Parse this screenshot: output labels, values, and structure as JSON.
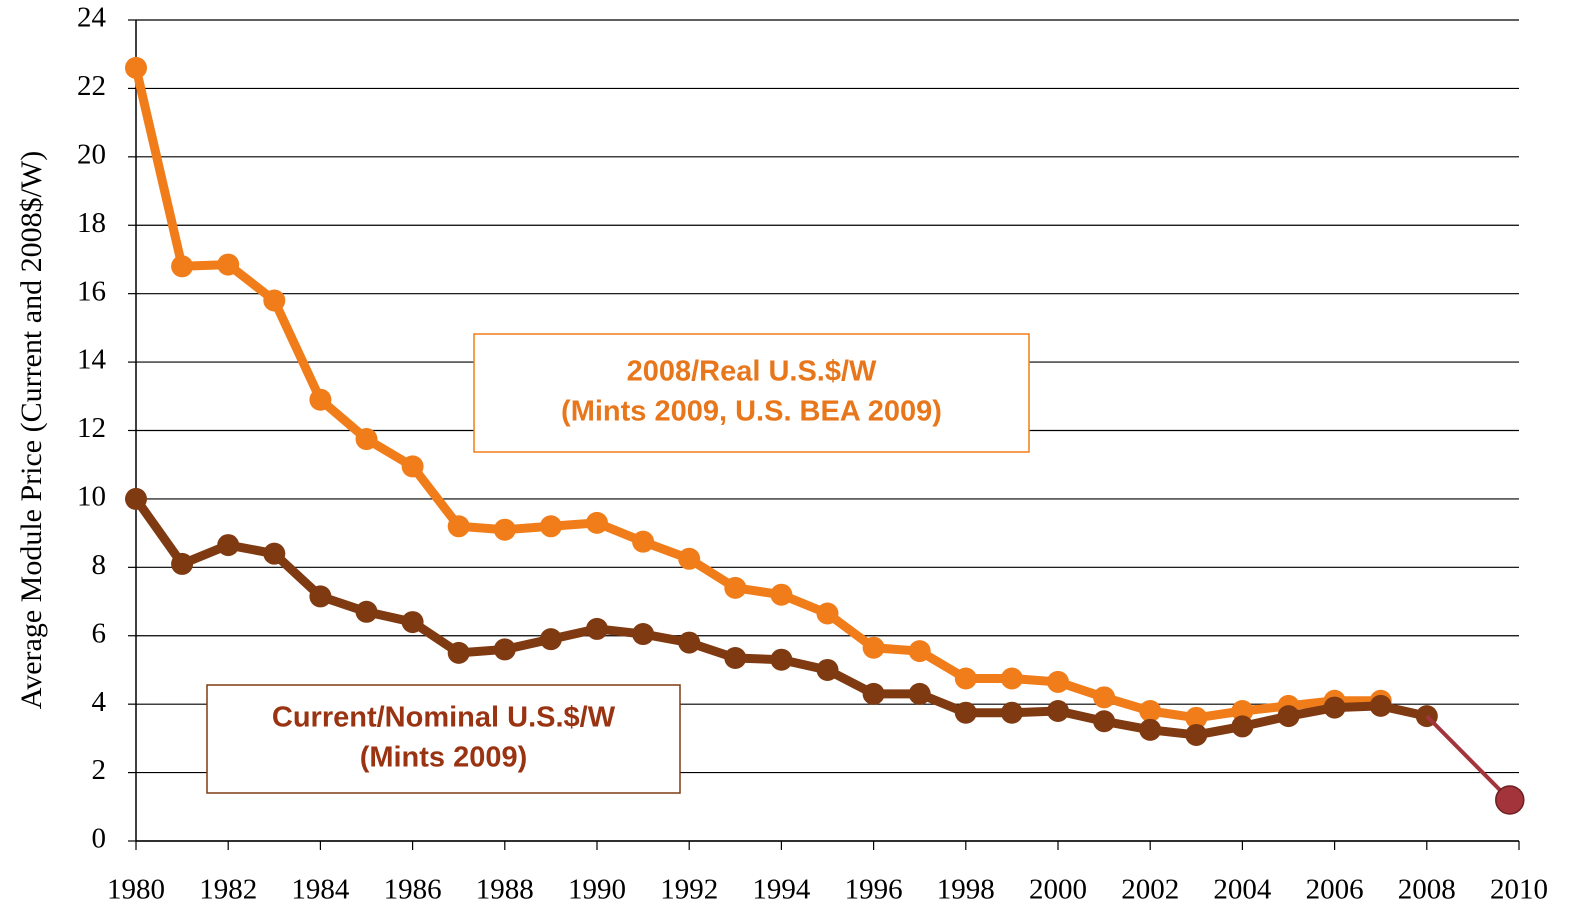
{
  "chart_data": {
    "type": "line",
    "y_label": "Average Module Price (Current and 2008$/W)",
    "xlim": [
      1980,
      2010
    ],
    "xticks": [
      1980,
      1982,
      1984,
      1986,
      1988,
      1990,
      1992,
      1994,
      1996,
      1998,
      2000,
      2002,
      2004,
      2006,
      2008,
      2010
    ],
    "ylim": [
      0,
      24
    ],
    "yticks": [
      0,
      2,
      4,
      6,
      8,
      10,
      12,
      14,
      16,
      18,
      20,
      22,
      24
    ],
    "grid": true,
    "series": [
      {
        "name": "2008/Real U.S.$/W",
        "note": "(Mints 2009, U.S. BEA 2009)",
        "color": "#f07d1a",
        "label_color": "#e8761b",
        "x": [
          1980,
          1981,
          1982,
          1983,
          1984,
          1985,
          1986,
          1987,
          1988,
          1989,
          1990,
          1991,
          1992,
          1993,
          1994,
          1995,
          1996,
          1997,
          1998,
          1999,
          2000,
          2001,
          2002,
          2003,
          2004,
          2005,
          2006,
          2007
        ],
        "values": [
          22.6,
          16.8,
          16.85,
          15.8,
          12.9,
          11.75,
          10.95,
          9.2,
          9.1,
          9.2,
          9.3,
          8.75,
          8.25,
          7.4,
          7.2,
          6.65,
          5.65,
          5.55,
          4.75,
          4.75,
          4.65,
          4.2,
          3.8,
          3.6,
          3.8,
          3.95,
          4.1,
          4.1
        ]
      },
      {
        "name": "Current/Nominal U.S.$/W",
        "note": "(Mints 2009)",
        "color": "#7f3a12",
        "label_color": "#993311",
        "x": [
          1980,
          1981,
          1982,
          1983,
          1984,
          1985,
          1986,
          1987,
          1988,
          1989,
          1990,
          1991,
          1992,
          1993,
          1994,
          1995,
          1996,
          1997,
          1998,
          1999,
          2000,
          2001,
          2002,
          2003,
          2004,
          2005,
          2006,
          2007,
          2008
        ],
        "values": [
          10.0,
          8.1,
          8.65,
          8.4,
          7.15,
          6.7,
          6.4,
          5.5,
          5.6,
          5.9,
          6.2,
          6.05,
          5.8,
          5.35,
          5.3,
          5.0,
          4.3,
          4.3,
          3.75,
          3.75,
          3.8,
          3.5,
          3.25,
          3.1,
          3.35,
          3.65,
          3.9,
          3.95,
          3.65
        ]
      },
      {
        "color": "#a3343c",
        "x": [
          2008,
          2009.8
        ],
        "values": [
          3.65,
          1.2
        ]
      }
    ]
  }
}
